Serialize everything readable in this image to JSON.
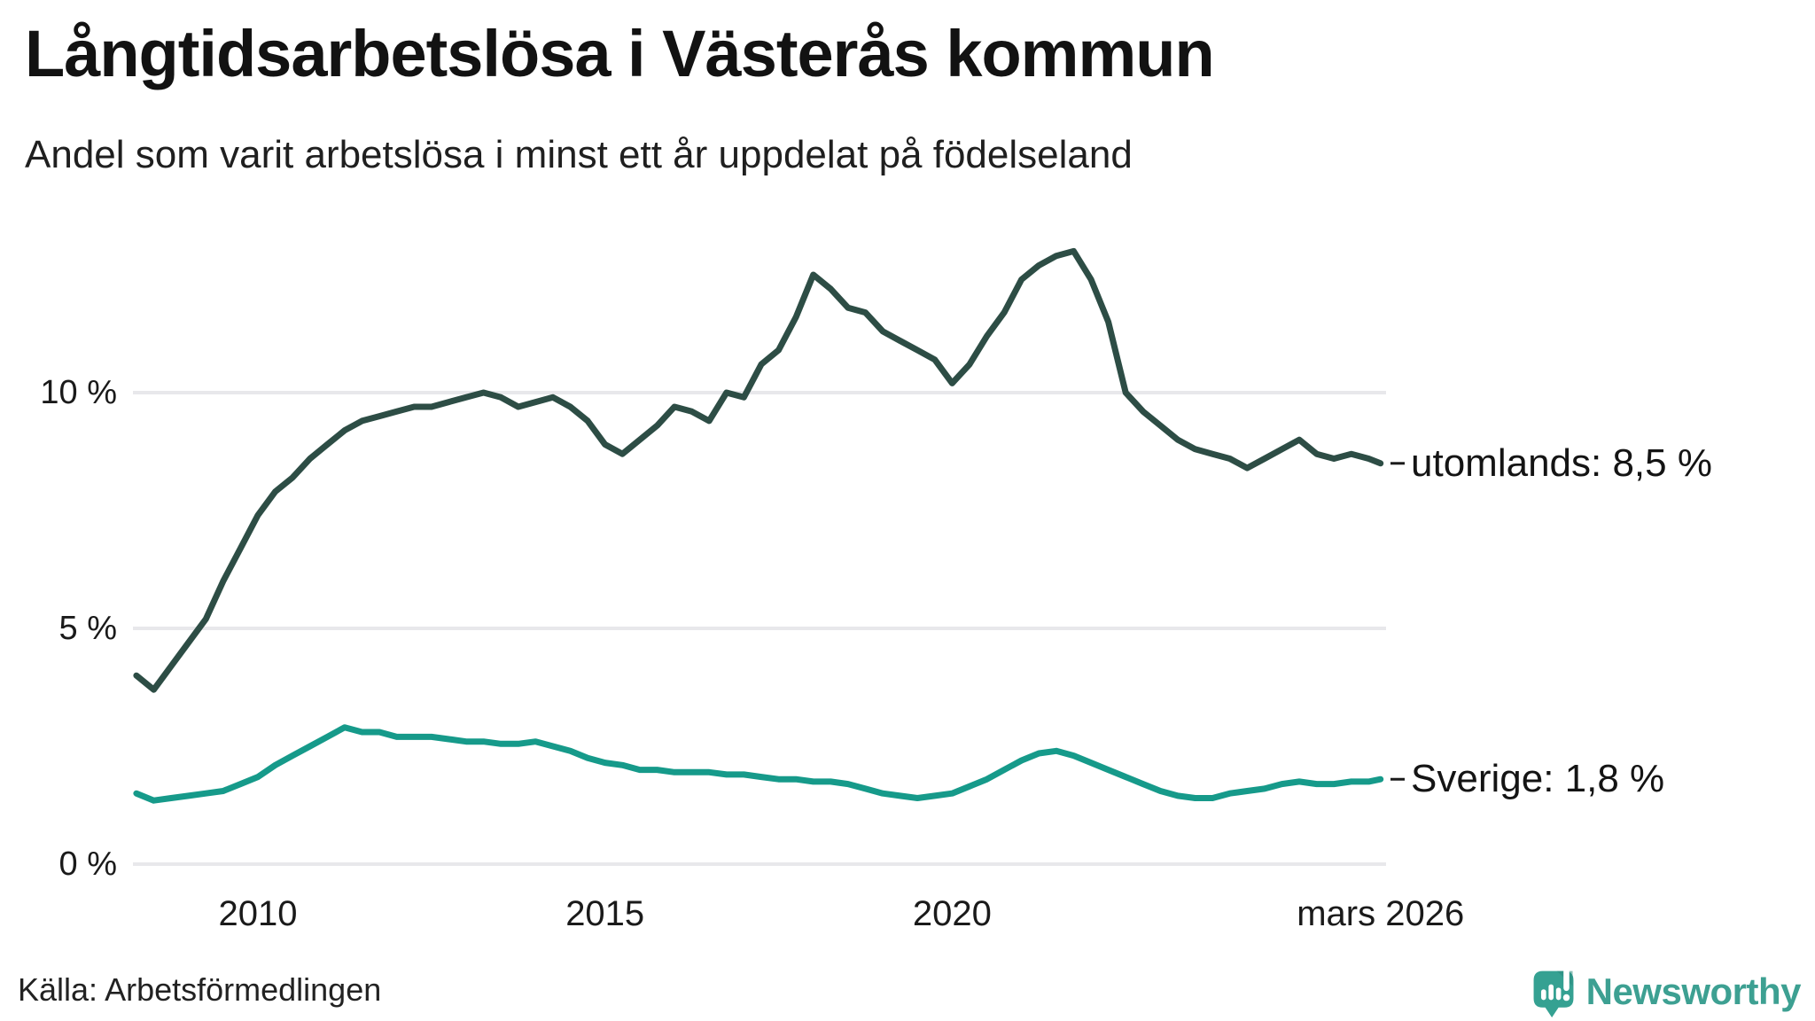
{
  "header": {
    "title": "Långtidsarbetslösa i Västerås kommun",
    "subtitle": "Andel som varit arbetslösa i minst ett år uppdelat på födelseland"
  },
  "footer": {
    "source": "Källa: Arbetsförmedlingen",
    "logo_text": "Newsworthy"
  },
  "colors": {
    "series_utomlands": "#2d4d45",
    "series_sverige": "#169a8a",
    "gridline": "#e8e8eb",
    "text": "#1a1a1a",
    "brand_teal": "#3da092",
    "label_dash": "#1a1a1a"
  },
  "chart_data": {
    "type": "line",
    "title": "Långtidsarbetslösa i Västerås kommun",
    "subtitle": "Andel som varit arbetslösa i minst ett år uppdelat på födelseland",
    "xlabel": "",
    "ylabel": "",
    "xlim": [
      2008.2,
      2026.25
    ],
    "ylim": [
      0,
      13.5
    ],
    "grid": "horizontal",
    "legend_position": "end-of-line-labels",
    "x": [
      2008.25,
      2008.5,
      2008.75,
      2009.0,
      2009.25,
      2009.5,
      2009.75,
      2010.0,
      2010.25,
      2010.5,
      2010.75,
      2011.0,
      2011.25,
      2011.5,
      2011.75,
      2012.0,
      2012.25,
      2012.5,
      2012.75,
      2013.0,
      2013.25,
      2013.5,
      2013.75,
      2014.0,
      2014.25,
      2014.5,
      2014.75,
      2015.0,
      2015.25,
      2015.5,
      2015.75,
      2016.0,
      2016.25,
      2016.5,
      2016.75,
      2017.0,
      2017.25,
      2017.5,
      2017.75,
      2018.0,
      2018.25,
      2018.5,
      2018.75,
      2019.0,
      2019.25,
      2019.5,
      2019.75,
      2020.0,
      2020.25,
      2020.5,
      2020.75,
      2021.0,
      2021.25,
      2021.5,
      2021.75,
      2022.0,
      2022.25,
      2022.5,
      2022.75,
      2023.0,
      2023.25,
      2023.5,
      2023.75,
      2024.0,
      2024.25,
      2024.5,
      2024.75,
      2025.0,
      2025.25,
      2025.5,
      2025.75,
      2026.0,
      2026.17
    ],
    "series": [
      {
        "name": "utomlands",
        "label": "utomlands: 8,5 %",
        "end_value": "8,5 %",
        "color": "#2d4d45",
        "values": [
          4.0,
          3.7,
          4.2,
          4.7,
          5.2,
          6.0,
          6.7,
          7.4,
          7.9,
          8.2,
          8.6,
          8.9,
          9.2,
          9.4,
          9.5,
          9.6,
          9.7,
          9.7,
          9.8,
          9.9,
          10.0,
          9.9,
          9.7,
          9.8,
          9.9,
          9.7,
          9.4,
          8.9,
          8.7,
          9.0,
          9.3,
          9.7,
          9.6,
          9.4,
          10.0,
          9.9,
          10.6,
          10.9,
          11.6,
          12.5,
          12.2,
          11.8,
          11.7,
          11.3,
          11.1,
          10.9,
          10.7,
          10.2,
          10.6,
          11.2,
          11.7,
          12.4,
          12.7,
          12.9,
          13.0,
          12.4,
          11.5,
          10.0,
          9.6,
          9.3,
          9.0,
          8.8,
          8.7,
          8.6,
          8.4,
          8.6,
          8.8,
          9.0,
          8.7,
          8.6,
          8.7,
          8.6,
          8.5
        ]
      },
      {
        "name": "Sverige",
        "label": "Sverige: 1,8 %",
        "end_value": "1,8 %",
        "color": "#169a8a",
        "values": [
          1.5,
          1.35,
          1.4,
          1.45,
          1.5,
          1.55,
          1.7,
          1.85,
          2.1,
          2.3,
          2.5,
          2.7,
          2.9,
          2.8,
          2.8,
          2.7,
          2.7,
          2.7,
          2.65,
          2.6,
          2.6,
          2.55,
          2.55,
          2.6,
          2.5,
          2.4,
          2.25,
          2.15,
          2.1,
          2.0,
          2.0,
          1.95,
          1.95,
          1.95,
          1.9,
          1.9,
          1.85,
          1.8,
          1.8,
          1.75,
          1.75,
          1.7,
          1.6,
          1.5,
          1.45,
          1.4,
          1.45,
          1.5,
          1.65,
          1.8,
          2.0,
          2.2,
          2.35,
          2.4,
          2.3,
          2.15,
          2.0,
          1.85,
          1.7,
          1.55,
          1.45,
          1.4,
          1.4,
          1.5,
          1.55,
          1.6,
          1.7,
          1.75,
          1.7,
          1.7,
          1.75,
          1.75,
          1.8
        ]
      }
    ],
    "y_ticks": [
      {
        "value": 10,
        "label": "10 %"
      },
      {
        "value": 5,
        "label": "5 %"
      },
      {
        "value": 0,
        "label": "0 %"
      }
    ],
    "x_ticks": [
      {
        "value": 2010,
        "label": "2010"
      },
      {
        "value": 2015,
        "label": "2015"
      },
      {
        "value": 2020,
        "label": "2020"
      },
      {
        "value": 2026.17,
        "label": "mars 2026"
      }
    ]
  }
}
